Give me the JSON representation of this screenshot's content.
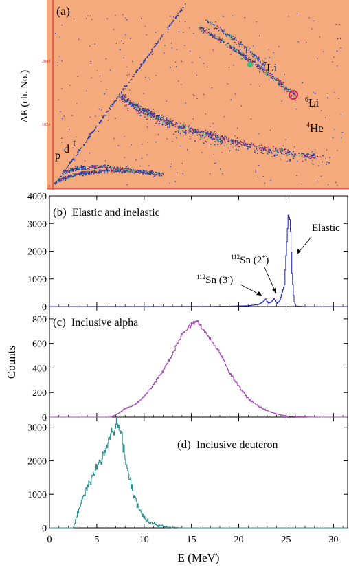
{
  "colors": {
    "background_a": "#f4aa7c",
    "red_axis_a": "#e03030",
    "scatter_blue": "#2a3ca8",
    "scatter_green": "#3cc07a",
    "scatter_red": "#d02050",
    "elastic_line": "#2a32b8",
    "alpha_line": "#a64bb8",
    "deuteron_line": "#2a8f8f"
  },
  "panel_a": {
    "label": "(a)",
    "ylabel": "ΔE (ch. No.)",
    "yticks": [
      "2048",
      "1024",
      "0"
    ],
    "bands": [
      {
        "name": "p"
      },
      {
        "name": "d"
      },
      {
        "name": "t"
      },
      {
        "name": "4He",
        "sup": "4",
        "sym": "He"
      },
      {
        "name": "7Li",
        "sup": "7",
        "sym": "Li"
      },
      {
        "name": "6Li",
        "sup": "6",
        "sym": "Li"
      }
    ]
  },
  "annotations": {
    "elastic": "Elastic",
    "sn2_pre": "112",
    "sn2_mid": "Sn (2",
    "sn2_sup": "+",
    "sn2_post": ")",
    "sn3_pre": "112",
    "sn3_mid": "Sn (3",
    "sn3_sup": "-",
    "sn3_post": ")"
  },
  "chart_data": [
    {
      "type": "scatter",
      "panel": "(a)",
      "ylabel": "ΔE (ch. No.)",
      "yticks": [
        0,
        1024,
        2048
      ],
      "series": [
        {
          "name": "p"
        },
        {
          "name": "d"
        },
        {
          "name": "t"
        },
        {
          "name": "4He"
        },
        {
          "name": "7Li"
        },
        {
          "name": "6Li"
        }
      ]
    },
    {
      "type": "line",
      "panel": "(b)",
      "title": "Elastic and inelastic",
      "xlim": [
        0,
        31.5
      ],
      "ylim": [
        0,
        4000
      ],
      "yticks": [
        0,
        1000,
        2000,
        3000,
        4000
      ],
      "points": [
        [
          0,
          0
        ],
        [
          17,
          5
        ],
        [
          19,
          12
        ],
        [
          21,
          30
        ],
        [
          22,
          70
        ],
        [
          22.5,
          160
        ],
        [
          22.8,
          270
        ],
        [
          23.1,
          120
        ],
        [
          23.4,
          160
        ],
        [
          23.7,
          300
        ],
        [
          24.0,
          110
        ],
        [
          24.3,
          220
        ],
        [
          24.5,
          450
        ],
        [
          24.8,
          800
        ],
        [
          25.0,
          2100
        ],
        [
          25.2,
          3300
        ],
        [
          25.4,
          3100
        ],
        [
          25.6,
          1200
        ],
        [
          25.8,
          200
        ],
        [
          26.0,
          20
        ],
        [
          27,
          0
        ],
        [
          31.5,
          0
        ]
      ]
    },
    {
      "type": "line",
      "panel": "(c)",
      "title": "Inclusive alpha",
      "xlim": [
        0,
        31.5
      ],
      "ylim": [
        0,
        900
      ],
      "yticks": [
        0,
        200,
        400,
        600,
        800
      ],
      "points": [
        [
          6.5,
          0
        ],
        [
          7,
          20
        ],
        [
          8,
          70
        ],
        [
          9,
          100
        ],
        [
          10,
          170
        ],
        [
          11,
          270
        ],
        [
          12,
          380
        ],
        [
          13,
          520
        ],
        [
          14,
          680
        ],
        [
          15,
          760
        ],
        [
          15.5,
          790
        ],
        [
          16,
          730
        ],
        [
          17,
          630
        ],
        [
          18,
          520
        ],
        [
          19,
          360
        ],
        [
          20,
          250
        ],
        [
          21,
          150
        ],
        [
          22,
          90
        ],
        [
          23,
          50
        ],
        [
          24,
          25
        ],
        [
          25,
          10
        ],
        [
          26,
          3
        ],
        [
          28,
          0
        ]
      ]
    },
    {
      "type": "line",
      "panel": "(d)",
      "title": "Inclusive deuteron",
      "xlabel": "E (MeV)",
      "xlim": [
        0,
        31.5
      ],
      "xticks": [
        0,
        5,
        10,
        15,
        20,
        25,
        30
      ],
      "ylim": [
        0,
        3300
      ],
      "yticks": [
        0,
        1000,
        2000,
        3000
      ],
      "points": [
        [
          2.5,
          0
        ],
        [
          3,
          500
        ],
        [
          3.5,
          900
        ],
        [
          4,
          1200
        ],
        [
          4.5,
          1500
        ],
        [
          5,
          1800
        ],
        [
          5.5,
          2100
        ],
        [
          6,
          2500
        ],
        [
          6.5,
          2800
        ],
        [
          7,
          3000
        ],
        [
          7.3,
          3200
        ],
        [
          7.6,
          2700
        ],
        [
          8,
          2100
        ],
        [
          8.5,
          1400
        ],
        [
          9,
          900
        ],
        [
          9.5,
          550
        ],
        [
          10,
          300
        ],
        [
          10.5,
          180
        ],
        [
          11,
          110
        ],
        [
          12,
          40
        ],
        [
          13,
          10
        ],
        [
          14,
          0
        ]
      ]
    }
  ],
  "panels": {
    "b": {
      "label": "(b)",
      "title": "Elastic and inelastic",
      "yticks": [
        "0",
        "1000",
        "2000",
        "3000",
        "4000"
      ]
    },
    "c": {
      "label": "(c)",
      "title": "Inclusive alpha",
      "yticks": [
        "0",
        "200",
        "400",
        "600",
        "800"
      ]
    },
    "d": {
      "label": "(d)",
      "title": "Inclusive deuteron",
      "yticks": [
        "0",
        "1000",
        "2000",
        "3000"
      ]
    }
  },
  "shared": {
    "ylabel": "Counts",
    "xlabel": "E (MeV)",
    "xticks": [
      "0",
      "5",
      "10",
      "15",
      "20",
      "25",
      "30"
    ]
  }
}
